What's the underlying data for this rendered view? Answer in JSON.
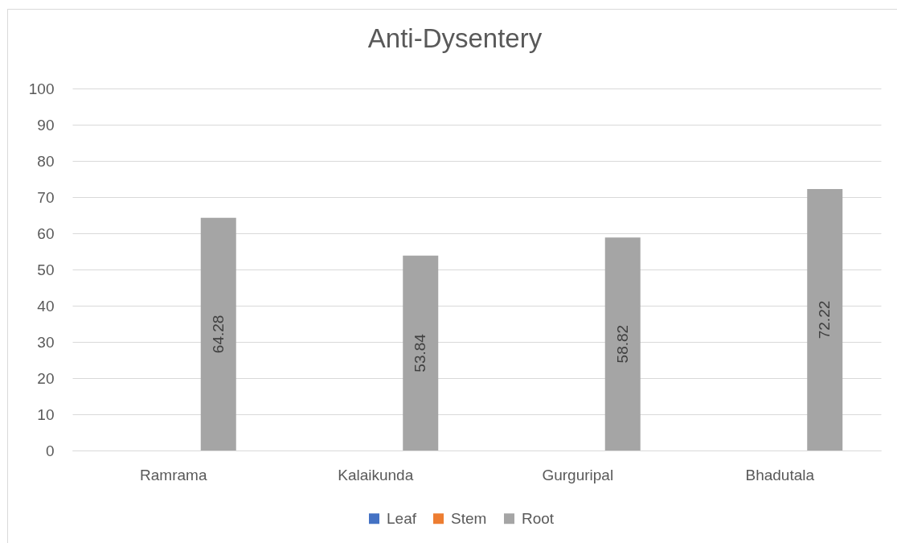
{
  "chart_data": {
    "type": "bar",
    "title": "Anti-Dysentery",
    "categories": [
      "Ramrama",
      "Kalaikunda",
      "Gurguripal",
      "Bhadutala"
    ],
    "series": [
      {
        "name": "Leaf",
        "color": "#4472c4",
        "values": [
          null,
          null,
          null,
          null
        ]
      },
      {
        "name": "Stem",
        "color": "#ed7d31",
        "values": [
          null,
          null,
          null,
          null
        ]
      },
      {
        "name": "Root",
        "color": "#a5a5a5",
        "values": [
          64.28,
          53.84,
          58.82,
          72.22
        ]
      }
    ],
    "ylim": [
      0,
      100
    ],
    "yticks": [
      0,
      10,
      20,
      30,
      40,
      50,
      60,
      70,
      80,
      90,
      100
    ],
    "grid": "y",
    "legend": "bottom",
    "data_labels": true
  }
}
